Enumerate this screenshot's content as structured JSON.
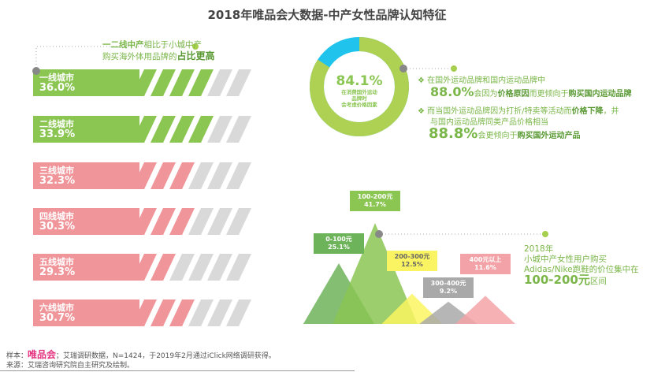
{
  "title": "2018年唯品会大数据-中产女性品牌认知特征",
  "left_note": {
    "bold1": "一二线中产",
    "text1": "相比于小城中产",
    "text2": "购买海外体用品牌的",
    "bold2": "占比更高"
  },
  "bars": [
    {
      "label": "一线城市",
      "value": "36.0%",
      "pct": 36.0,
      "color": "#8bc653"
    },
    {
      "label": "二线城市",
      "value": "33.9%",
      "pct": 33.9,
      "color": "#8bc653"
    },
    {
      "label": "三线城市",
      "value": "32.3%",
      "pct": 32.3,
      "color": "#f0959a"
    },
    {
      "label": "四线城市",
      "value": "30.3%",
      "pct": 30.3,
      "color": "#f0959a"
    },
    {
      "label": "五线城市",
      "value": "29.3%",
      "pct": 29.3,
      "color": "#f0959a"
    },
    {
      "label": "六线城市",
      "value": "30.7%",
      "pct": 30.7,
      "color": "#f0959a"
    }
  ],
  "donut": {
    "value": "84.1%",
    "pct": 84.1,
    "caption": [
      "在消费国外运动",
      "品牌时",
      "会考虑价格因素"
    ],
    "colors": {
      "main": "#afd153",
      "rest": "#1fc3ec"
    }
  },
  "right_notes": {
    "n1_line1": "在国外运动品牌和国内运动品牌中",
    "n1_pct": "88.0%",
    "n1_a": "会因为",
    "n1_b": "价格原因",
    "n1_c": "而更倾向于",
    "n1_d": "购买国内运动品牌",
    "n2_line1a": "而当国外运动品牌因为打折/特卖等活动而",
    "n2_line1b": "价格下降",
    "n2_line1c": "，并",
    "n2_line2": "与国内运动品牌同类产品价格相当",
    "n2_pct": "88.8%",
    "n2_a": "会更倾向于",
    "n2_b": "购买国外运动产品"
  },
  "chart_data": {
    "type": "area",
    "categories": [
      "0-100元",
      "100-200元",
      "200-300元",
      "300-400元",
      "400元以上"
    ],
    "values": [
      25.1,
      41.7,
      12.5,
      9.2,
      11.6
    ],
    "labels": [
      "25.1%",
      "41.7%",
      "12.5%",
      "9.2%",
      "11.6%"
    ],
    "colors": [
      "#6db35a",
      "#8bc653",
      "#fbf462",
      "#a9a9a9",
      "#f3a3a7"
    ]
  },
  "price_note": {
    "l1": "2018年",
    "l2": "小城中产女性用户购买",
    "l3": "Adidas/Nike跑鞋的价位集中在",
    "big": "100-200元",
    "tail": "区间"
  },
  "footer": {
    "sample_prefix": "样本：",
    "brand": "唯品会",
    "sample_text": "；艾瑞调研数据，N=1424，于2019年2月通过iClick网络调研获得。",
    "source": "来源：艾瑞咨询研究院自主研究及绘制。"
  }
}
